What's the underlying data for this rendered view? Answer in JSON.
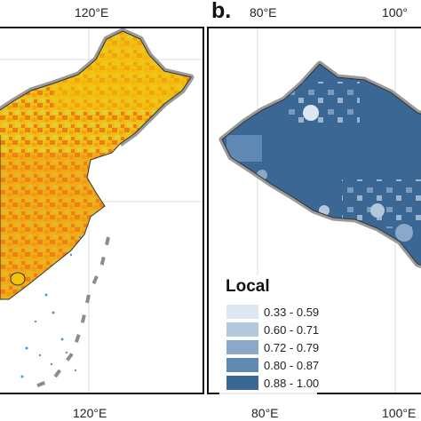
{
  "panel_a": {
    "lon_top": "120°E",
    "lon_bottom": "120°E"
  },
  "panel_b": {
    "letter": "b.",
    "lon_top_1": "80°E",
    "lon_top_2": "100°",
    "lon_bottom_1": "80°E",
    "lon_bottom_2": "100°E"
  },
  "legend": {
    "title": "Local",
    "classes": [
      {
        "label": "0.33 - 0.59",
        "color": "#dce7f0"
      },
      {
        "label": "0.60 - 0.71",
        "color": "#b4c8dd"
      },
      {
        "label": "0.72 - 0.79",
        "color": "#8aa8c8"
      },
      {
        "label": "0.80 - 0.87",
        "color": "#5f88b2"
      },
      {
        "label": "0.88 - 1.00",
        "color": "#3a6794"
      }
    ]
  },
  "colors": {
    "choropleth_low": "#c9de5a",
    "choropleth_mid": "#f4c20d",
    "choropleth_high": "#f08a16",
    "choropleth_max": "#e0461b",
    "ocean_points": "#4a9ad6",
    "border_halo": "#8c8c8c"
  }
}
